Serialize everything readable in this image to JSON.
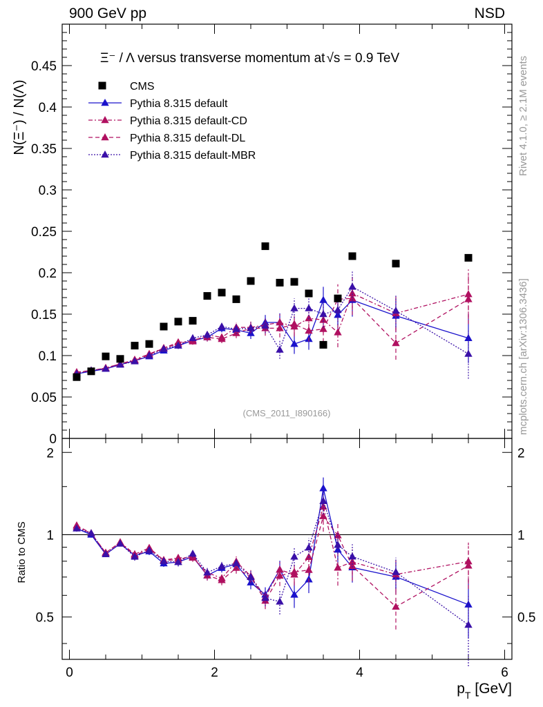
{
  "header": {
    "left": "900 GeV pp",
    "right": "NSD"
  },
  "side_labels": {
    "rivet": "Rivet 4.1.0, ≥ 2.1M events",
    "mcplots": "mcplots.cern.ch [arXiv:1306.3436]"
  },
  "chart_data": {
    "type": "scatter",
    "title_prefix": "Ξ⁻ / Λ versus transverse momentum at",
    "title_sqrt": "√s",
    "title_suffix": " = 0.9 TeV",
    "analysis_tag": "(CMS_2011_I890166)",
    "ylabel": "N(Ξ⁻) / N(Λ)",
    "ratio_ylabel": "Ratio to CMS",
    "xlabel": "p_T [GeV]",
    "xlabel_main": "p",
    "xlabel_sub": "T",
    "xlabel_unit": " [GeV]",
    "xlim": [
      -0.1,
      6.1
    ],
    "ylim": [
      0,
      0.5
    ],
    "ratio_ylim": [
      0.35,
      2.25
    ],
    "xticks": [
      "0",
      "2",
      "4",
      "6"
    ],
    "yticks": [
      "0",
      "0.05",
      "0.1",
      "0.15",
      "0.2",
      "0.25",
      "0.3",
      "0.35",
      "0.4",
      "0.45"
    ],
    "ratio_yticks": [
      "0.5",
      "1",
      "2"
    ],
    "x": [
      0.1,
      0.3,
      0.5,
      0.7,
      0.9,
      1.1,
      1.3,
      1.5,
      1.7,
      1.9,
      2.1,
      2.3,
      2.5,
      2.7,
      2.9,
      3.1,
      3.3,
      3.5,
      3.7,
      3.9,
      4.5,
      5.5
    ],
    "data": {
      "name": "CMS",
      "values": [
        0.074,
        0.081,
        0.099,
        0.096,
        0.112,
        0.114,
        0.135,
        0.141,
        0.142,
        0.172,
        0.176,
        0.168,
        0.19,
        0.232,
        0.188,
        0.189,
        0.175,
        0.113,
        0.169,
        0.22,
        0.211,
        0.218
      ]
    },
    "series": [
      {
        "name": "Pythia 8.315 default",
        "color": "#1a12cc",
        "dash": "",
        "values": [
          0.078,
          0.081,
          0.084,
          0.089,
          0.094,
          0.099,
          0.106,
          0.112,
          0.118,
          0.122,
          0.133,
          0.131,
          0.127,
          0.14,
          0.14,
          0.114,
          0.12,
          0.167,
          0.149,
          0.167,
          0.148,
          0.121
        ],
        "errors": [
          0.002,
          0.002,
          0.002,
          0.002,
          0.003,
          0.003,
          0.003,
          0.004,
          0.004,
          0.005,
          0.005,
          0.006,
          0.007,
          0.009,
          0.011,
          0.012,
          0.013,
          0.016,
          0.018,
          0.02,
          0.02,
          0.03
        ]
      },
      {
        "name": "Pythia 8.315 default-CD",
        "color": "#b01060",
        "dash": "6,3,2,3",
        "values": [
          0.079,
          0.082,
          0.085,
          0.09,
          0.095,
          0.102,
          0.109,
          0.116,
          0.117,
          0.125,
          0.122,
          0.134,
          0.134,
          0.137,
          0.14,
          0.135,
          0.145,
          0.143,
          0.128,
          0.175,
          0.151,
          0.174
        ],
        "errors": [
          0.002,
          0.002,
          0.002,
          0.002,
          0.003,
          0.003,
          0.003,
          0.004,
          0.004,
          0.005,
          0.005,
          0.006,
          0.007,
          0.009,
          0.011,
          0.012,
          0.013,
          0.016,
          0.018,
          0.02,
          0.02,
          0.03
        ]
      },
      {
        "name": "Pythia 8.315 default-DL",
        "color": "#b01060",
        "dash": "6,4",
        "values": [
          0.08,
          0.082,
          0.085,
          0.09,
          0.094,
          0.101,
          0.109,
          0.114,
          0.119,
          0.122,
          0.12,
          0.127,
          0.133,
          0.133,
          0.133,
          0.138,
          0.13,
          0.132,
          0.168,
          0.169,
          0.115,
          0.168
        ],
        "errors": [
          0.002,
          0.002,
          0.002,
          0.002,
          0.003,
          0.003,
          0.003,
          0.004,
          0.004,
          0.005,
          0.005,
          0.006,
          0.007,
          0.009,
          0.011,
          0.012,
          0.013,
          0.016,
          0.018,
          0.02,
          0.02,
          0.03
        ]
      },
      {
        "name": "Pythia 8.315 default-MBR",
        "color": "#3a10a8",
        "dash": "2,2",
        "values": [
          0.078,
          0.082,
          0.084,
          0.089,
          0.093,
          0.1,
          0.108,
          0.112,
          0.121,
          0.125,
          0.135,
          0.132,
          0.133,
          0.136,
          0.107,
          0.157,
          0.157,
          0.15,
          0.155,
          0.183,
          0.154,
          0.102
        ],
        "errors": [
          0.002,
          0.002,
          0.002,
          0.002,
          0.003,
          0.003,
          0.003,
          0.004,
          0.004,
          0.005,
          0.005,
          0.006,
          0.007,
          0.009,
          0.011,
          0.012,
          0.013,
          0.016,
          0.018,
          0.02,
          0.02,
          0.03
        ]
      }
    ]
  }
}
